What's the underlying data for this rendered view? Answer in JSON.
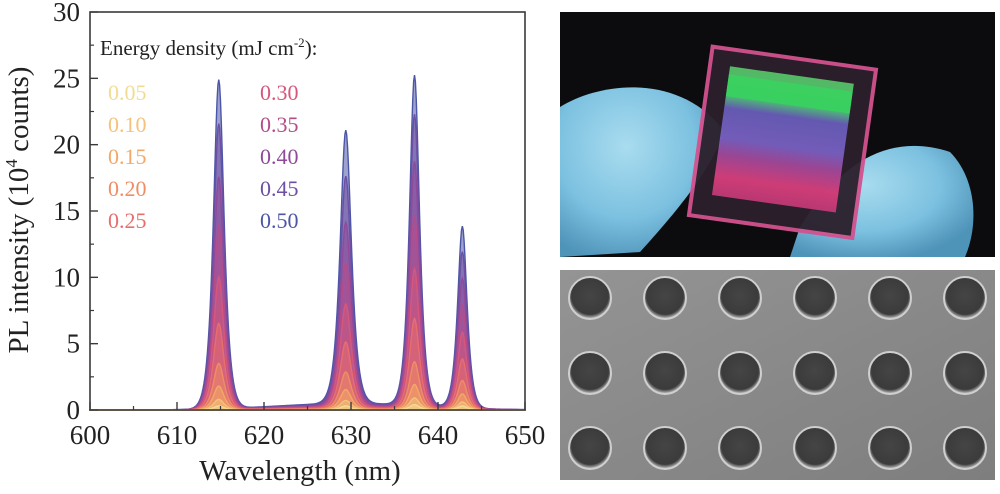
{
  "chart_data": {
    "type": "line",
    "xlabel": "Wavelength (nm)",
    "ylabel_main": "PL intensity (10",
    "ylabel_sup": "4",
    "ylabel_tail": " counts)",
    "xlim": [
      600,
      650
    ],
    "ylim": [
      0,
      30
    ],
    "x_ticks": [
      "600",
      "610",
      "620",
      "630",
      "640",
      "650"
    ],
    "y_ticks": [
      "0",
      "5",
      "10",
      "15",
      "20",
      "25",
      "30"
    ],
    "legend_title_main": "Energy density (mJ cm",
    "legend_title_sup": "-2",
    "legend_title_tail": "):",
    "peaks_nm": [
      614.8,
      629.4,
      637.3,
      642.8
    ],
    "series": [
      {
        "name": "0.05",
        "color": "#f2dc92",
        "peak_heights": [
          0.3,
          0.3,
          0.4,
          0.3
        ]
      },
      {
        "name": "0.10",
        "color": "#f4c27a",
        "peak_heights": [
          0.8,
          0.7,
          0.9,
          0.6
        ]
      },
      {
        "name": "0.15",
        "color": "#f3a867",
        "peak_heights": [
          1.8,
          1.5,
          1.9,
          1.2
        ]
      },
      {
        "name": "0.20",
        "color": "#ef8d66",
        "peak_heights": [
          3.5,
          2.8,
          3.6,
          2.2
        ]
      },
      {
        "name": "0.25",
        "color": "#e86e6e",
        "peak_heights": [
          6.5,
          5.0,
          6.8,
          3.8
        ]
      },
      {
        "name": "0.30",
        "color": "#d6577b",
        "peak_heights": [
          10.0,
          7.8,
          10.5,
          5.8
        ]
      },
      {
        "name": "0.35",
        "color": "#b44c8a",
        "peak_heights": [
          13.8,
          10.8,
          14.5,
          7.8
        ]
      },
      {
        "name": "0.40",
        "color": "#8f4a99",
        "peak_heights": [
          17.5,
          13.8,
          18.5,
          9.8
        ]
      },
      {
        "name": "0.45",
        "color": "#6d4fa3",
        "peak_heights": [
          21.5,
          17.2,
          22.0,
          11.8
        ]
      },
      {
        "name": "0.50",
        "color": "#4d56a6",
        "peak_heights": [
          24.8,
          20.6,
          24.9,
          13.7
        ]
      }
    ],
    "grid": false,
    "legend_position": "top-left"
  }
}
